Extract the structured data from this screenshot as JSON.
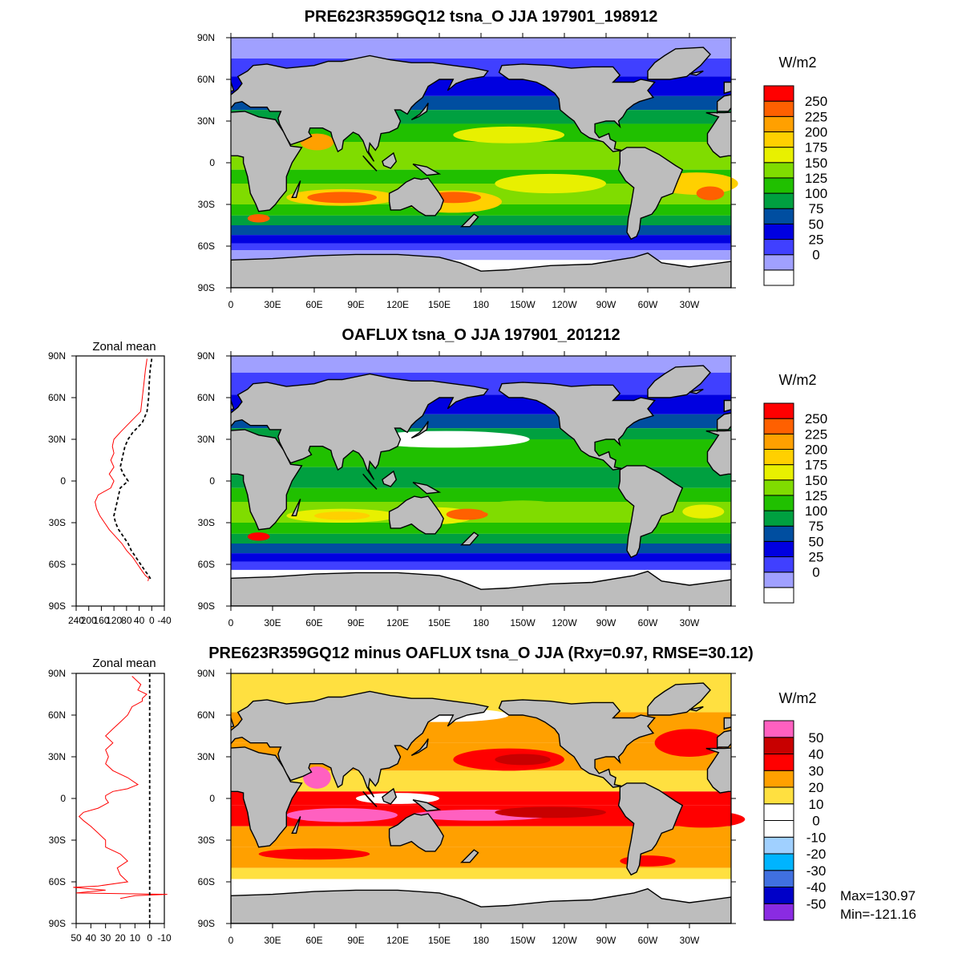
{
  "chart_data": [
    {
      "type": "heatmap",
      "title": "PRE623R359GQ12 tsna_O JJA 197901_198912",
      "xticks": [
        "0",
        "30E",
        "60E",
        "90E",
        "120E",
        "150E",
        "180",
        "150W",
        "120W",
        "90W",
        "60W",
        "30W"
      ],
      "yticks": [
        "90N",
        "60N",
        "30N",
        "0",
        "30S",
        "60S",
        "90S"
      ],
      "colorbar": {
        "units": "W/m2",
        "labels": [
          "250",
          "225",
          "200",
          "175",
          "150",
          "125",
          "100",
          "75",
          "50",
          "25",
          "0"
        ],
        "colors": [
          "#ffffff",
          "#a0a0ff",
          "#4040ff",
          "#0000e0",
          "#004ea0",
          "#00a040",
          "#20c000",
          "#80dc00",
          "#e8f000",
          "#ffd000",
          "#ffa000",
          "#ff6000",
          "#ff0000"
        ]
      }
    },
    {
      "type": "heatmap",
      "title": "OAFLUX tsna_O JJA 197901_201212",
      "xticks": [
        "0",
        "30E",
        "60E",
        "90E",
        "120E",
        "150E",
        "180",
        "150W",
        "120W",
        "90W",
        "60W",
        "30W"
      ],
      "yticks": [
        "90N",
        "60N",
        "30N",
        "0",
        "30S",
        "60S",
        "90S"
      ],
      "colorbar": {
        "units": "W/m2",
        "labels": [
          "250",
          "225",
          "200",
          "175",
          "150",
          "125",
          "100",
          "75",
          "50",
          "25",
          "0"
        ],
        "colors": [
          "#ffffff",
          "#a0a0ff",
          "#4040ff",
          "#0000e0",
          "#004ea0",
          "#00a040",
          "#20c000",
          "#80dc00",
          "#e8f000",
          "#ffd000",
          "#ffa000",
          "#ff6000",
          "#ff0000"
        ]
      }
    },
    {
      "type": "line",
      "title": "Zonal mean",
      "xticks": [
        "240",
        "200",
        "160",
        "120",
        "80",
        "40",
        "0",
        "-40"
      ],
      "xlim": [
        240,
        -40
      ],
      "yticks": [
        "90N",
        "60N",
        "30N",
        "0",
        "30S",
        "60S",
        "90S"
      ],
      "ylim": [
        -90,
        90
      ],
      "series": [
        {
          "color": "#ff0000",
          "style": "solid",
          "lat": [
            88,
            80,
            70,
            60,
            50,
            42,
            35,
            30,
            25,
            20,
            15,
            10,
            5,
            0,
            -5,
            -10,
            -15,
            -20,
            -25,
            -30,
            -35,
            -40,
            -45,
            -50,
            -55,
            -60,
            -65,
            -68,
            -70,
            -72
          ],
          "values": [
            15,
            20,
            25,
            30,
            35,
            70,
            100,
            120,
            125,
            120,
            130,
            120,
            135,
            120,
            130,
            170,
            180,
            175,
            165,
            150,
            135,
            115,
            95,
            80,
            60,
            45,
            30,
            20,
            10,
            12
          ]
        },
        {
          "color": "#000000",
          "style": "dashed",
          "lat": [
            88,
            80,
            70,
            60,
            50,
            42,
            35,
            30,
            25,
            20,
            15,
            10,
            5,
            0,
            -5,
            -10,
            -15,
            -20,
            -25,
            -30,
            -35,
            -40,
            -45,
            -50,
            -55,
            -60,
            -65,
            -68,
            -70,
            -72
          ],
          "values": [
            0,
            5,
            8,
            10,
            15,
            30,
            60,
            75,
            85,
            90,
            95,
            100,
            90,
            75,
            100,
            105,
            110,
            115,
            120,
            115,
            105,
            90,
            75,
            65,
            50,
            35,
            20,
            10,
            5,
            2
          ]
        }
      ]
    },
    {
      "type": "heatmap",
      "title": "PRE623R359GQ12 minus OAFLUX tsna_O JJA (Rxy=0.97, RMSE=30.12)",
      "xticks": [
        "0",
        "30E",
        "60E",
        "90E",
        "120E",
        "150E",
        "180",
        "150W",
        "120W",
        "90W",
        "60W",
        "30W"
      ],
      "yticks": [
        "90N",
        "60N",
        "30N",
        "0",
        "30S",
        "60S",
        "90S"
      ],
      "colorbar": {
        "units": "W/m2",
        "labels": [
          "50",
          "40",
          "30",
          "20",
          "10",
          "0",
          "-10",
          "-20",
          "-30",
          "-40",
          "-50"
        ],
        "colors": [
          "#8a2be2",
          "#0000c8",
          "#4070e0",
          "#00b4ff",
          "#a0d0ff",
          "#ffffff",
          "#ffffff",
          "#ffe040",
          "#ffa000",
          "#ff0000",
          "#c80000",
          "#ff60c0"
        ]
      },
      "max_label": "Max=130.97",
      "min_label": "Min=-121.16"
    },
    {
      "type": "line",
      "title": "Zonal mean",
      "xticks": [
        "50",
        "40",
        "30",
        "20",
        "10",
        "0",
        "-10"
      ],
      "xlim": [
        50,
        -10
      ],
      "yticks": [
        "90N",
        "60N",
        "30N",
        "0",
        "30S",
        "60S",
        "90S"
      ],
      "ylim": [
        -90,
        90
      ],
      "series": [
        {
          "color": "#ff0000",
          "style": "solid",
          "lat": [
            88,
            82,
            78,
            75,
            72,
            70,
            66,
            60,
            55,
            50,
            45,
            40,
            35,
            30,
            25,
            20,
            15,
            10,
            7,
            5,
            2,
            0,
            -3,
            -7,
            -10,
            -13,
            -16,
            -20,
            -25,
            -30,
            -35,
            -40,
            -45,
            -50,
            -55,
            -60,
            -63,
            -64,
            -66,
            -68,
            -69,
            -70,
            -72
          ],
          "values": [
            12,
            6,
            8,
            2,
            5,
            5,
            12,
            15,
            20,
            25,
            30,
            25,
            30,
            28,
            30,
            25,
            15,
            8,
            15,
            25,
            30,
            30,
            28,
            35,
            45,
            48,
            45,
            40,
            35,
            30,
            30,
            20,
            15,
            22,
            20,
            15,
            35,
            52,
            30,
            50,
            -12,
            10,
            20
          ]
        },
        {
          "color": "#000000",
          "style": "dashed",
          "lat": [
            90,
            -90
          ],
          "values": [
            0,
            0
          ]
        }
      ]
    }
  ]
}
